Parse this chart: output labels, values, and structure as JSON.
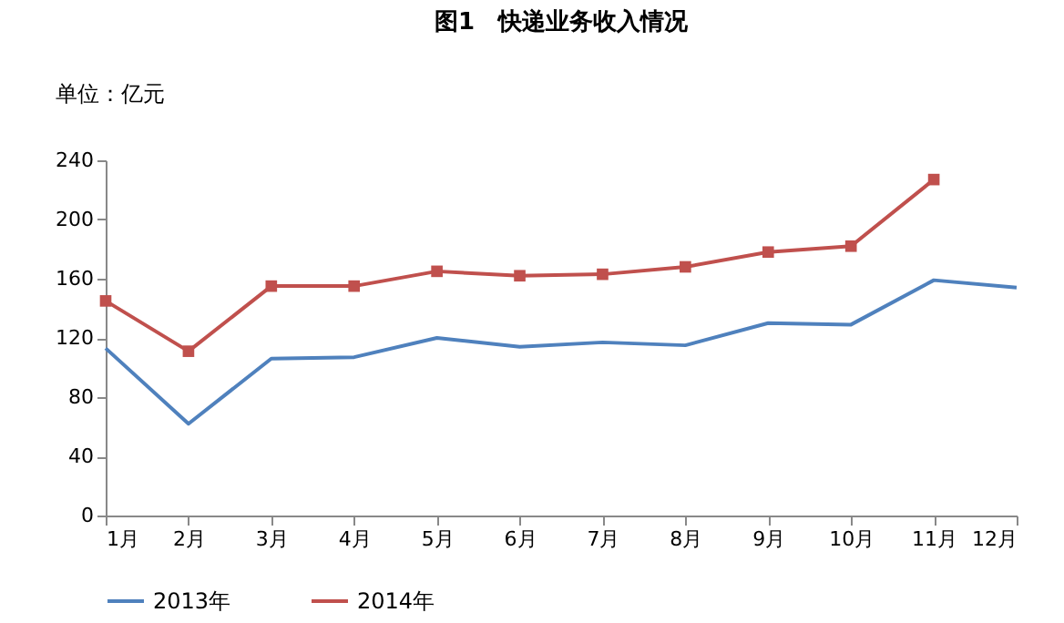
{
  "chart_data": {
    "type": "line",
    "title": "图1　快递业务收入情况",
    "ylabel": "单位：亿元",
    "categories": [
      "1月",
      "2月",
      "3月",
      "4月",
      "5月",
      "6月",
      "7月",
      "8月",
      "9月",
      "10月",
      "11月",
      "12月"
    ],
    "series": [
      {
        "name": "2013年",
        "color": "#4f81bd",
        "marker": "none",
        "values": [
          113,
          62,
          106,
          107,
          120,
          114,
          117,
          115,
          130,
          129,
          159,
          154
        ]
      },
      {
        "name": "2014年",
        "color": "#c0504d",
        "marker": "square",
        "values": [
          145,
          111,
          155,
          155,
          165,
          162,
          163,
          168,
          178,
          182,
          227,
          null
        ]
      }
    ],
    "ylim": [
      0,
      240
    ],
    "yticks": [
      0,
      40,
      80,
      120,
      160,
      200,
      240
    ],
    "grid": false,
    "legend": "bottom",
    "line_style": "solid"
  }
}
